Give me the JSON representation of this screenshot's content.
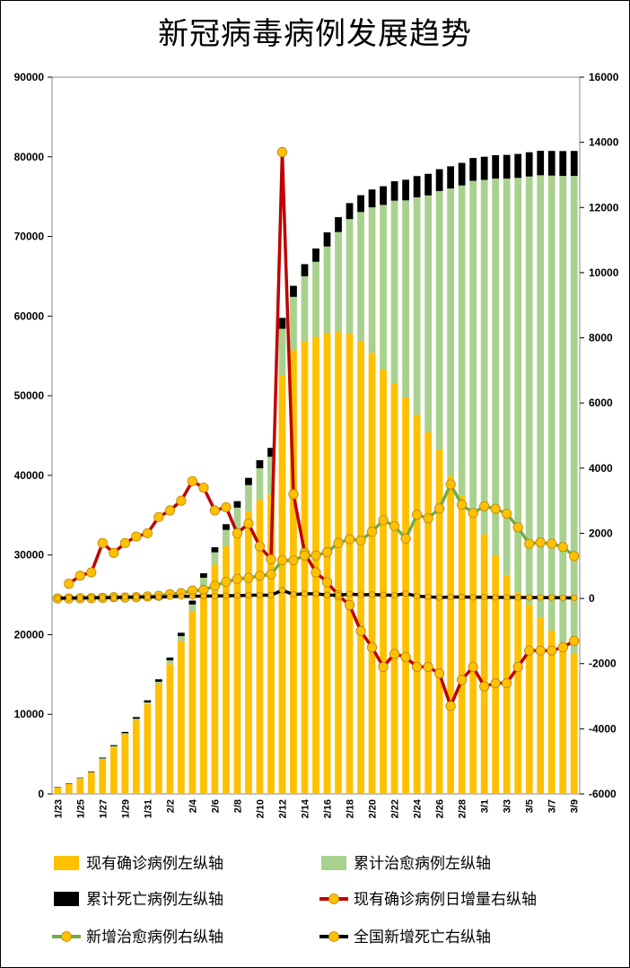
{
  "chart_data": {
    "type": "bar",
    "title": "新冠病毒病例发展趋势",
    "x": [
      "1/23",
      "1/24",
      "1/25",
      "1/26",
      "1/27",
      "1/28",
      "1/29",
      "1/30",
      "1/31",
      "2/1",
      "2/2",
      "2/3",
      "2/4",
      "2/5",
      "2/6",
      "2/7",
      "2/8",
      "2/9",
      "2/10",
      "2/11",
      "2/12",
      "2/13",
      "2/14",
      "2/15",
      "2/16",
      "2/17",
      "2/18",
      "2/19",
      "2/20",
      "2/21",
      "2/22",
      "2/23",
      "2/24",
      "2/25",
      "2/26",
      "2/27",
      "2/28",
      "2/29",
      "3/1",
      "3/2",
      "3/3",
      "3/4",
      "3/5",
      "3/6",
      "3/7",
      "3/8",
      "3/9"
    ],
    "x_tick_labels": [
      "1/23",
      "1/25",
      "1/27",
      "1/29",
      "1/31",
      "2/2",
      "2/4",
      "2/6",
      "2/8",
      "2/10",
      "2/12",
      "2/14",
      "2/16",
      "2/18",
      "2/20",
      "2/22",
      "2/24",
      "2/26",
      "2/28",
      "3/1",
      "3/3",
      "3/5",
      "3/7",
      "3/9"
    ],
    "left_axis": {
      "ylim": [
        0,
        90000
      ],
      "ticks": [
        0,
        10000,
        20000,
        30000,
        40000,
        50000,
        60000,
        70000,
        80000,
        90000
      ]
    },
    "right_axis": {
      "ylim": [
        -6000,
        16000
      ],
      "ticks": [
        -6000,
        -4000,
        -2000,
        0,
        2000,
        4000,
        6000,
        8000,
        10000,
        12000,
        14000,
        16000
      ]
    },
    "stacked_bars": [
      {
        "name": "现有确诊病例左纵轴",
        "axis": "left",
        "color": "#FFC000",
        "values": [
          800,
          1250,
          1950,
          2700,
          4400,
          5900,
          7500,
          9300,
          11300,
          13800,
          16300,
          19200,
          22900,
          26000,
          28800,
          31100,
          33300,
          35500,
          36900,
          37600,
          52500,
          55700,
          56900,
          57400,
          57900,
          58000,
          57800,
          56900,
          55400,
          53300,
          51600,
          49800,
          47600,
          45400,
          43200,
          39900,
          37400,
          35300,
          32600,
          30000,
          27400,
          25300,
          23800,
          22200,
          20500,
          19000,
          17700
        ]
      },
      {
        "name": "累计治愈病例左纵轴",
        "axis": "left",
        "color": "#A9D18E",
        "values": [
          30,
          40,
          50,
          50,
          60,
          100,
          120,
          140,
          200,
          290,
          470,
          620,
          890,
          1150,
          1540,
          2050,
          2650,
          3280,
          3990,
          4740,
          5910,
          6720,
          8100,
          9420,
          10840,
          12550,
          14380,
          16160,
          18260,
          20660,
          22890,
          24730,
          27320,
          29750,
          32500,
          36120,
          39000,
          41680,
          44500,
          47260,
          49860,
          52050,
          53730,
          55480,
          57140,
          58600,
          59900
        ]
      },
      {
        "name": "累计死亡病例左纵轴",
        "axis": "left",
        "color": "#000000",
        "values": [
          25,
          41,
          56,
          80,
          106,
          132,
          170,
          213,
          259,
          304,
          361,
          425,
          490,
          563,
          636,
          722,
          811,
          908,
          1016,
          1113,
          1367,
          1380,
          1523,
          1665,
          1770,
          1868,
          2004,
          2118,
          2236,
          2345,
          2442,
          2592,
          2663,
          2715,
          2744,
          2788,
          2835,
          2870,
          2912,
          2943,
          2981,
          3012,
          3042,
          3070,
          3097,
          3119,
          3136
        ]
      }
    ],
    "lines": [
      {
        "name": "现有确诊病例日增量右纵轴",
        "axis": "right",
        "color": "#C00000",
        "marker": "#FFC000",
        "values": [
          null,
          450,
          700,
          800,
          1700,
          1400,
          1700,
          1900,
          2000,
          2500,
          2700,
          3000,
          3600,
          3400,
          2700,
          2800,
          2000,
          2300,
          1600,
          1200,
          13700,
          3200,
          1400,
          800,
          500,
          100,
          -200,
          -1000,
          -1500,
          -2100,
          -1700,
          -1800,
          -2100,
          -2100,
          -2300,
          -3300,
          -2500,
          -2100,
          -2700,
          -2600,
          -2600,
          -2100,
          -1600,
          -1600,
          -1600,
          -1500,
          -1300
        ]
      },
      {
        "name": "新增治愈病例右纵轴",
        "axis": "right",
        "color": "#70AD47",
        "marker": "#FFC000",
        "values": [
          0,
          0,
          10,
          10,
          20,
          40,
          30,
          40,
          60,
          80,
          130,
          160,
          240,
          260,
          390,
          510,
          600,
          630,
          700,
          740,
          1170,
          1170,
          1320,
          1320,
          1420,
          1700,
          1820,
          1780,
          2050,
          2400,
          2220,
          1840,
          2570,
          2460,
          2760,
          3500,
          2880,
          2620,
          2830,
          2750,
          2600,
          2180,
          1680,
          1720,
          1680,
          1580,
          1300
        ]
      },
      {
        "name": "全国新增死亡右纵轴",
        "axis": "right",
        "color": "#000000",
        "marker": "#FFC000",
        "values": [
          8,
          16,
          15,
          24,
          26,
          26,
          38,
          43,
          46,
          45,
          57,
          64,
          65,
          73,
          73,
          86,
          89,
          97,
          108,
          97,
          254,
          121,
          143,
          142,
          105,
          98,
          136,
          114,
          118,
          109,
          97,
          150,
          71,
          52,
          29,
          44,
          47,
          35,
          42,
          31,
          38,
          31,
          30,
          28,
          27,
          22,
          17
        ]
      }
    ],
    "legend": [
      {
        "label": "现有确诊病例左纵轴",
        "type": "box",
        "color": "#FFC000"
      },
      {
        "label": "累计治愈病例左纵轴",
        "type": "box",
        "color": "#A9D18E"
      },
      {
        "label": "累计死亡病例左纵轴",
        "type": "box",
        "color": "#000000"
      },
      {
        "label": "现有确诊病例日增量右纵轴",
        "type": "line",
        "color": "#C00000"
      },
      {
        "label": "新增治愈病例右纵轴",
        "type": "line",
        "color": "#70AD47"
      },
      {
        "label": "全国新增死亡右纵轴",
        "type": "line",
        "color": "#000000"
      }
    ],
    "legend_placement": "bottom",
    "grid": false
  }
}
